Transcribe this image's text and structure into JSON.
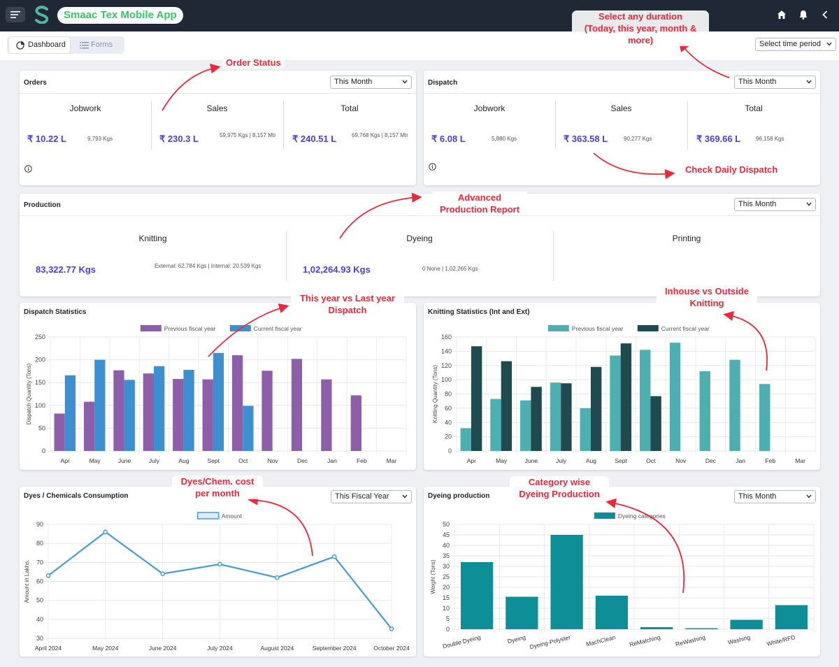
{
  "app": {
    "title": "Smaac Tex Mobile App"
  },
  "nav": {
    "tab_dashboard": "Dashboard",
    "tab_forms": "Forms",
    "time_period": "Select time period"
  },
  "orders": {
    "title": "Orders",
    "filter": "This Month",
    "jobwork": {
      "label": "Jobwork",
      "amount": "₹ 10.22 L",
      "detail": "9,793 Kgs"
    },
    "sales": {
      "label": "Sales",
      "amount": "₹ 230.3 L",
      "detail": "59,975 Kgs | 8,157 Mtr"
    },
    "total": {
      "label": "Total",
      "amount": "₹ 240.51 L",
      "detail": "69,768 Kgs | 8,157 Mtr"
    }
  },
  "dispatch": {
    "title": "Dispatch",
    "filter": "This Month",
    "jobwork": {
      "label": "Jobwork",
      "amount": "₹ 6.08 L",
      "detail": "5,880 Kgs"
    },
    "sales": {
      "label": "Sales",
      "amount": "₹ 363.58 L",
      "detail": "90,277 Kgs"
    },
    "total": {
      "label": "Total",
      "amount": "₹ 369.66 L",
      "detail": "96,158 Kgs"
    }
  },
  "production": {
    "title": "Production",
    "filter": "This Month",
    "knitting": {
      "label": "Knitting",
      "amount": "83,322.77 Kgs",
      "detail": "External: 62,784 Kgs | Internal: 20,539 Kgs"
    },
    "dyeing": {
      "label": "Dyeing",
      "amount": "1,02,264.93 Kgs",
      "detail": "0 None | 1,02,265 Kgs"
    },
    "printing": {
      "label": "Printing"
    }
  },
  "dispatch_stats": {
    "title": "Dispatch Statistics"
  },
  "knitting_stats": {
    "title": "Knitting Statistics (Int and Ext)"
  },
  "dyes": {
    "title": "Dyes / Chemicals Consumption",
    "filter": "This Fiscal Year"
  },
  "dyeing_prod": {
    "title": "Dyeing production",
    "filter": "This Month"
  },
  "annotations": {
    "order_status": "Order Status",
    "duration_1": "Select any duration",
    "duration_2": "(Today, this year, month &",
    "duration_3": "more)",
    "daily_dispatch": "Check Daily Dispatch",
    "adv_1": "Advanced",
    "adv_2": "Production Report",
    "yoy_1": "This year vs Last year",
    "yoy_2": "Dispatch",
    "inout_1": "Inhouse vs Outside",
    "inout_2": "Knitting",
    "dyes_1": "Dyes/Chem. cost",
    "dyes_2": "per month",
    "cat_1": "Category wise",
    "cat_2": "Dyeing Production"
  },
  "colors": {
    "accent": "#4a3fd6",
    "annotation": "#ea2a3a",
    "topbar": "#212835",
    "brand_green": "#34c76b"
  },
  "chart_data": [
    {
      "type": "bar",
      "title": "Dispatch Statistics",
      "categories": [
        "Apr",
        "May",
        "June",
        "July",
        "Aug",
        "Sept",
        "Oct",
        "Nov",
        "Dec",
        "Jan",
        "Feb",
        "Mar"
      ],
      "series": [
        {
          "name": "Previous fiscal year",
          "color": "#8c5fa8",
          "values": [
            82,
            108,
            177,
            170,
            158,
            157,
            210,
            176,
            202,
            157,
            122,
            null
          ]
        },
        {
          "name": "Current fiscal year",
          "color": "#3e8fd0",
          "values": [
            166,
            200,
            156,
            186,
            178,
            215,
            99,
            null,
            null,
            null,
            null,
            null
          ]
        }
      ],
      "ylabel": "Dispatch Quantity (Tons)",
      "ylim": [
        0,
        250
      ],
      "yticks": [
        0,
        50,
        100,
        150,
        200,
        250
      ],
      "grid": true,
      "legend": "top"
    },
    {
      "type": "bar",
      "title": "Knitting Statistics (Int and Ext)",
      "categories": [
        "Apr",
        "May",
        "June",
        "July",
        "Aug",
        "Sept",
        "Oct",
        "Nov",
        "Dec",
        "Jan",
        "Feb",
        "Mar"
      ],
      "series": [
        {
          "name": "Previous fiscal year",
          "color": "#4dafb0",
          "values": [
            32,
            73,
            71,
            96,
            60,
            134,
            142,
            152,
            112,
            128,
            94,
            null
          ]
        },
        {
          "name": "Current fiscal year",
          "color": "#1f4a50",
          "values": [
            147,
            126,
            90,
            95,
            118,
            151,
            77,
            null,
            null,
            null,
            null,
            null
          ]
        }
      ],
      "ylabel": "Knitting Quantity (Tons)",
      "ylim": [
        0,
        160
      ],
      "yticks": [
        0,
        20,
        40,
        60,
        80,
        100,
        120,
        140,
        160
      ],
      "grid": true,
      "legend": "top"
    },
    {
      "type": "line",
      "title": "Dyes / Chemicals Consumption",
      "categories": [
        "April 2024",
        "May 2024",
        "June 2024",
        "July 2024",
        "August 2024",
        "September 2024",
        "October 2024"
      ],
      "series": [
        {
          "name": "Amount",
          "color": "#4a9bcf",
          "values": [
            63,
            86,
            64,
            69,
            62,
            73,
            35
          ]
        }
      ],
      "ylabel": "Amount in Lakhs.",
      "ylim": [
        30,
        90
      ],
      "yticks": [
        30,
        40,
        50,
        60,
        70,
        80,
        90
      ],
      "grid": true,
      "legend": "top"
    },
    {
      "type": "bar",
      "title": "Dyeing production",
      "categories": [
        "Double Dyeing",
        "Dyeing",
        "Dyeing-Polyster",
        "MachClean",
        "ReMatching",
        "ReWashing",
        "Washing",
        "White/RFD"
      ],
      "series": [
        {
          "name": "Dyeing categories",
          "color": "#0e8f98",
          "values": [
            32,
            15.5,
            45,
            16,
            1,
            0.5,
            4.5,
            11.5
          ]
        }
      ],
      "ylabel": "Weight (Tons)",
      "ylim": [
        0,
        50
      ],
      "yticks": [
        0,
        5,
        10,
        15,
        20,
        25,
        30,
        35,
        40,
        45,
        50
      ],
      "grid": true,
      "legend": "top"
    }
  ]
}
